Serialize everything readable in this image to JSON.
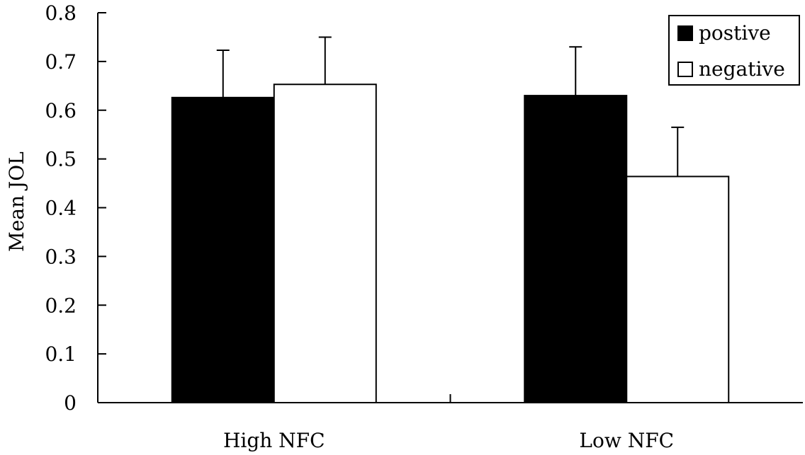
{
  "chart_data": {
    "type": "bar",
    "title": "",
    "xlabel": "",
    "ylabel": "Mean JOL",
    "ylim": [
      0,
      0.8
    ],
    "yticks": [
      "0",
      "0.1",
      "0.2",
      "0.3",
      "0.4",
      "0.5",
      "0.6",
      "0.7",
      "0.8"
    ],
    "categories": [
      "High NFC",
      "Low NFC"
    ],
    "series": [
      {
        "name": "postive",
        "values": [
          0.626,
          0.63
        ],
        "errors": [
          0.097,
          0.1
        ],
        "color": "#000000"
      },
      {
        "name": "negative",
        "values": [
          0.653,
          0.464
        ],
        "errors": [
          0.097,
          0.101
        ],
        "color": "#ffffff"
      }
    ],
    "legend": "top-right",
    "grid": false,
    "error_bars": "upper"
  }
}
